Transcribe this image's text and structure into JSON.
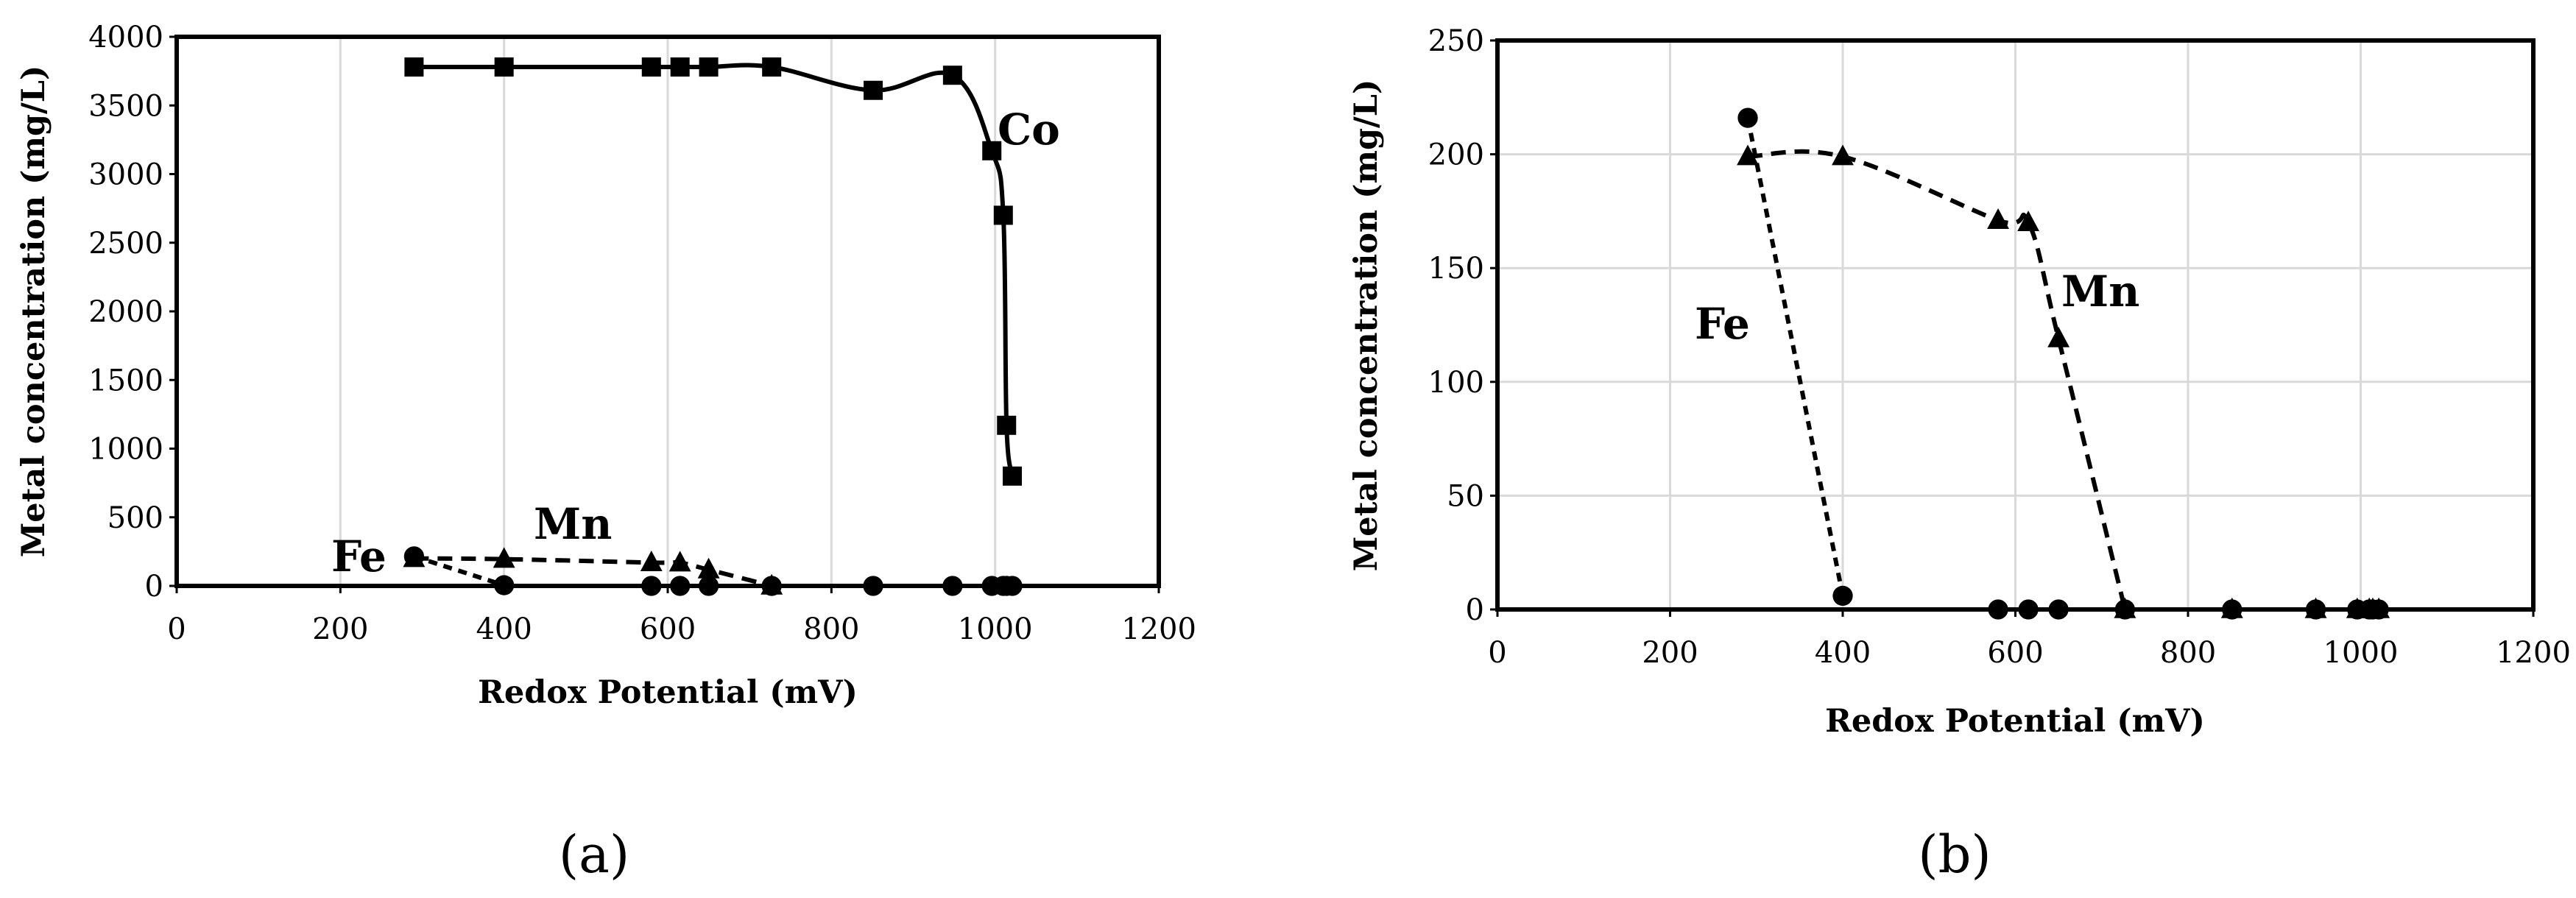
{
  "chart_data": [
    {
      "type": "line",
      "panel_label": "(a)",
      "xlabel": "Redox Potential (mV)",
      "ylabel": "Metal concentration (mg/L)",
      "xlim": [
        0,
        1200
      ],
      "ylim": [
        0,
        4000
      ],
      "xticks": [
        0,
        200,
        400,
        600,
        800,
        1000,
        1200
      ],
      "yticks": [
        0,
        500,
        1000,
        1500,
        2000,
        2500,
        3000,
        3500,
        4000
      ],
      "grid": "vertical",
      "legend": "none",
      "series": [
        {
          "name": "Co",
          "marker": "square",
          "line": "solid",
          "x": [
            290,
            400,
            580,
            615,
            650,
            727,
            851,
            948,
            996,
            1010,
            1014,
            1021
          ],
          "y": [
            3780,
            3780,
            3780,
            3780,
            3780,
            3780,
            3610,
            3720,
            3170,
            2700,
            1170,
            800
          ]
        },
        {
          "name": "Mn",
          "marker": "triangle",
          "line": "dashed",
          "x": [
            290,
            400,
            580,
            615,
            650,
            727
          ],
          "y": [
            200,
            195,
            170,
            168,
            118,
            0
          ]
        },
        {
          "name": "Fe",
          "marker": "circle",
          "line": "dotted",
          "x": [
            290,
            400,
            580,
            615,
            650,
            727,
            851,
            948,
            996,
            1010,
            1014,
            1021
          ],
          "y": [
            215,
            5,
            0,
            0,
            0,
            0,
            0,
            0,
            0,
            0,
            0,
            0
          ]
        }
      ]
    },
    {
      "type": "line",
      "panel_label": "(b)",
      "xlabel": "Redox Potential (mV)",
      "ylabel": "Metal concentration (mg/L)",
      "xlim": [
        0,
        1200
      ],
      "ylim": [
        0,
        250
      ],
      "xticks": [
        0,
        200,
        400,
        600,
        800,
        1000,
        1200
      ],
      "yticks": [
        0,
        50,
        100,
        150,
        200,
        250
      ],
      "grid": "both",
      "legend": "none",
      "series": [
        {
          "name": "Mn",
          "marker": "triangle",
          "line": "dashed",
          "x": [
            290,
            400,
            580,
            615,
            650,
            727,
            851,
            948,
            996,
            1010,
            1014,
            1021
          ],
          "y": [
            199,
            199,
            171,
            170,
            119,
            0,
            0,
            0,
            0,
            0,
            0,
            0
          ]
        },
        {
          "name": "Fe",
          "marker": "circle",
          "line": "dotted",
          "x": [
            290,
            400,
            580,
            615,
            650,
            727,
            851,
            948,
            996,
            1010,
            1014,
            1021
          ],
          "y": [
            216,
            6,
            0,
            0,
            0,
            0,
            0,
            0,
            0,
            0,
            0,
            0
          ]
        }
      ]
    }
  ]
}
